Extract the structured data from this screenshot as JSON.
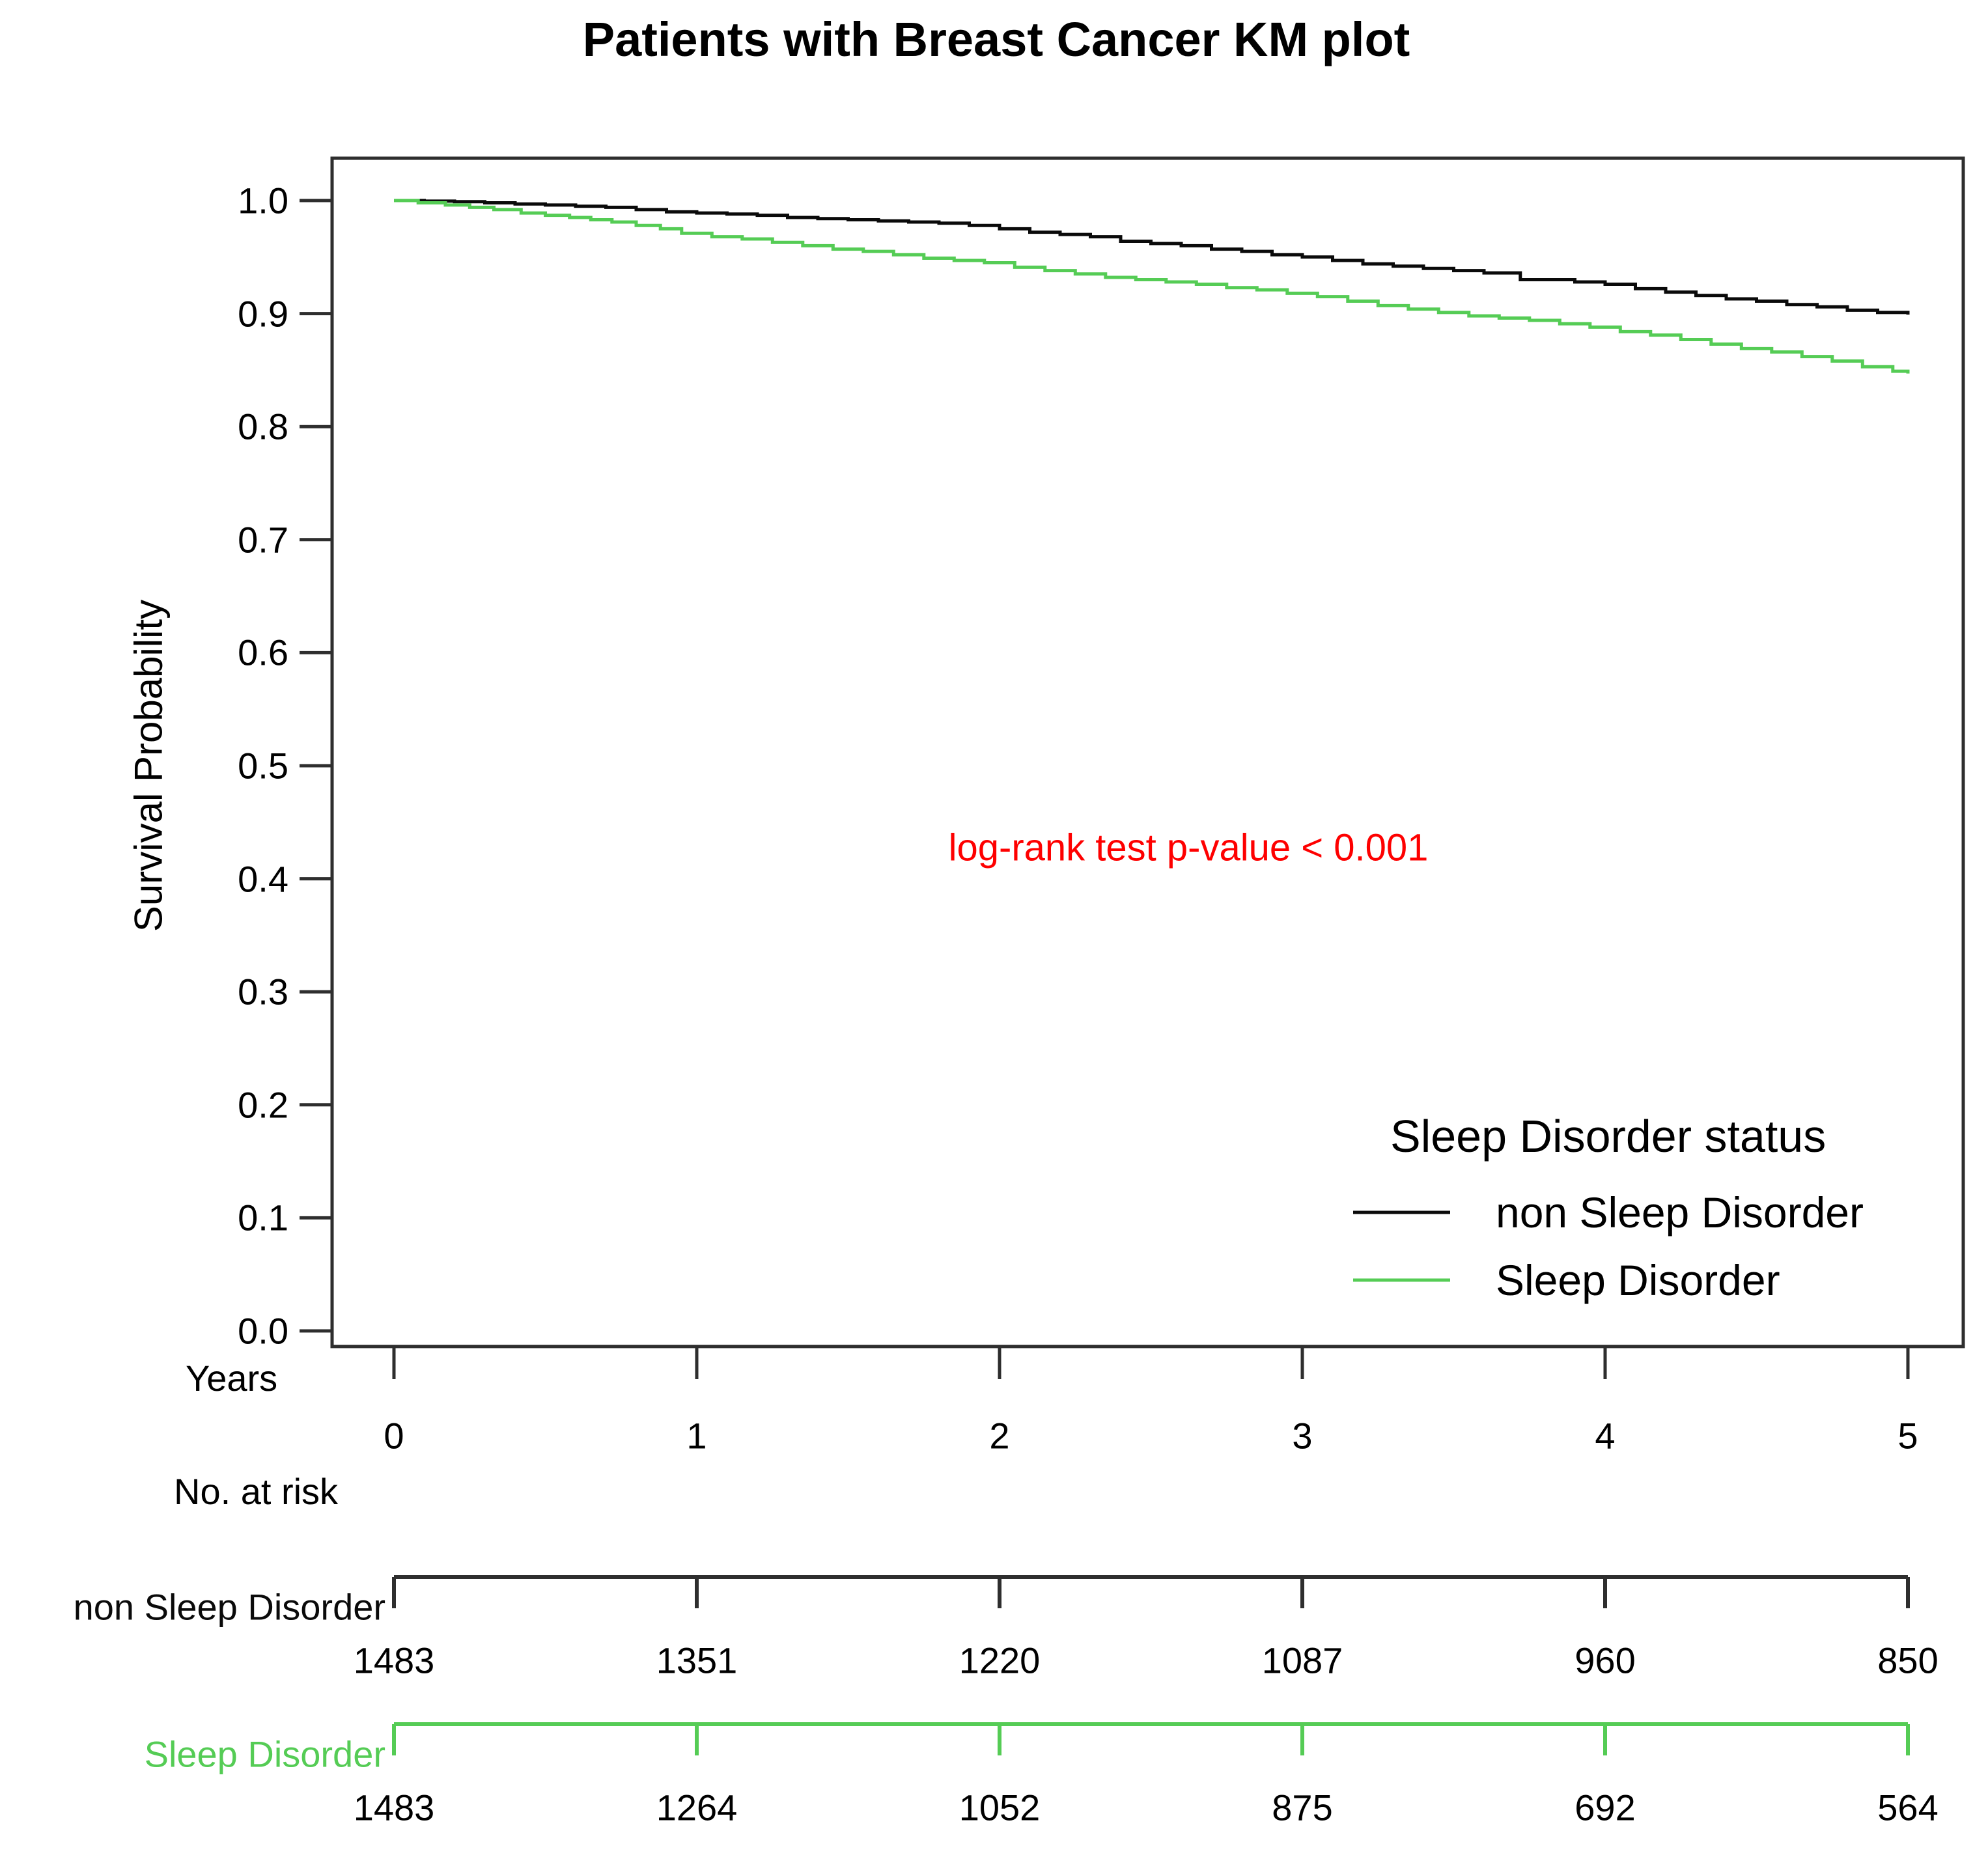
{
  "title": "Patients with Breast Cancer KM plot",
  "annotation": {
    "text": "log-rank test p-value < 0.001",
    "color": "#fe0000"
  },
  "axes": {
    "y_label": "Survival Probability",
    "x_label": "Years"
  },
  "chart_data": {
    "type": "line",
    "subtype": "kaplan-meier-step",
    "title": "Patients with Breast Cancer KM plot",
    "xlabel": "Years",
    "ylabel": "Survival Probability",
    "xlim": [
      0,
      5
    ],
    "ylim": [
      0.0,
      1.0
    ],
    "x_ticks": [
      0,
      1,
      2,
      3,
      4,
      5
    ],
    "y_ticks": [
      1.0,
      0.9,
      0.8,
      0.7,
      0.6,
      0.5,
      0.4,
      0.3,
      0.2,
      0.1,
      0.0
    ],
    "grid": false,
    "annotation": {
      "text": "log-rank test p-value < 0.001",
      "color": "#fe0000",
      "x": 2.62,
      "y": 0.425
    },
    "legend": {
      "title": "Sleep Disorder status",
      "position": "lower right",
      "entries": [
        {
          "label": "non Sleep Disorder",
          "color": "#0a0a0a"
        },
        {
          "label": "Sleep Disorder",
          "color": "#55cc55"
        }
      ]
    },
    "series": [
      {
        "name": "non Sleep Disorder",
        "color": "#0a0a0a",
        "points": [
          [
            0,
            1.0
          ],
          [
            0.1,
            0.9995
          ],
          [
            0.2,
            0.999
          ],
          [
            0.3,
            0.998
          ],
          [
            0.4,
            0.997
          ],
          [
            0.5,
            0.996
          ],
          [
            0.6,
            0.995
          ],
          [
            0.7,
            0.994
          ],
          [
            0.8,
            0.992
          ],
          [
            0.9,
            0.99
          ],
          [
            1.0,
            0.989
          ],
          [
            1.1,
            0.988
          ],
          [
            1.2,
            0.987
          ],
          [
            1.3,
            0.985
          ],
          [
            1.4,
            0.984
          ],
          [
            1.5,
            0.983
          ],
          [
            1.6,
            0.982
          ],
          [
            1.7,
            0.981
          ],
          [
            1.8,
            0.98
          ],
          [
            1.9,
            0.978
          ],
          [
            2.0,
            0.975
          ],
          [
            2.1,
            0.972
          ],
          [
            2.2,
            0.97
          ],
          [
            2.3,
            0.968
          ],
          [
            2.4,
            0.964
          ],
          [
            2.5,
            0.962
          ],
          [
            2.6,
            0.96
          ],
          [
            2.7,
            0.957
          ],
          [
            2.8,
            0.955
          ],
          [
            2.9,
            0.952
          ],
          [
            3.0,
            0.95
          ],
          [
            3.1,
            0.947
          ],
          [
            3.2,
            0.944
          ],
          [
            3.3,
            0.942
          ],
          [
            3.4,
            0.94
          ],
          [
            3.5,
            0.938
          ],
          [
            3.6,
            0.936
          ],
          [
            3.72,
            0.93
          ],
          [
            3.9,
            0.928
          ],
          [
            4.0,
            0.926
          ],
          [
            4.1,
            0.922
          ],
          [
            4.2,
            0.919
          ],
          [
            4.3,
            0.916
          ],
          [
            4.4,
            0.913
          ],
          [
            4.5,
            0.911
          ],
          [
            4.6,
            0.908
          ],
          [
            4.7,
            0.906
          ],
          [
            4.8,
            0.903
          ],
          [
            4.9,
            0.901
          ],
          [
            5.0,
            0.899
          ]
        ]
      },
      {
        "name": "Sleep Disorder",
        "color": "#55cc55",
        "points": [
          [
            0,
            1.0
          ],
          [
            0.08,
            0.998
          ],
          [
            0.17,
            0.996
          ],
          [
            0.25,
            0.994
          ],
          [
            0.33,
            0.992
          ],
          [
            0.42,
            0.989
          ],
          [
            0.5,
            0.987
          ],
          [
            0.58,
            0.985
          ],
          [
            0.65,
            0.983
          ],
          [
            0.72,
            0.981
          ],
          [
            0.8,
            0.978
          ],
          [
            0.88,
            0.975
          ],
          [
            0.95,
            0.971
          ],
          [
            1.05,
            0.968
          ],
          [
            1.15,
            0.966
          ],
          [
            1.25,
            0.963
          ],
          [
            1.35,
            0.96
          ],
          [
            1.45,
            0.957
          ],
          [
            1.55,
            0.955
          ],
          [
            1.65,
            0.952
          ],
          [
            1.75,
            0.949
          ],
          [
            1.85,
            0.947
          ],
          [
            1.95,
            0.945
          ],
          [
            2.05,
            0.941
          ],
          [
            2.15,
            0.938
          ],
          [
            2.25,
            0.935
          ],
          [
            2.35,
            0.932
          ],
          [
            2.45,
            0.93
          ],
          [
            2.55,
            0.928
          ],
          [
            2.65,
            0.926
          ],
          [
            2.75,
            0.923
          ],
          [
            2.85,
            0.921
          ],
          [
            2.95,
            0.918
          ],
          [
            3.05,
            0.915
          ],
          [
            3.15,
            0.911
          ],
          [
            3.25,
            0.907
          ],
          [
            3.35,
            0.904
          ],
          [
            3.45,
            0.901
          ],
          [
            3.55,
            0.898
          ],
          [
            3.65,
            0.896
          ],
          [
            3.75,
            0.894
          ],
          [
            3.85,
            0.891
          ],
          [
            3.95,
            0.888
          ],
          [
            4.05,
            0.884
          ],
          [
            4.15,
            0.881
          ],
          [
            4.25,
            0.877
          ],
          [
            4.35,
            0.873
          ],
          [
            4.45,
            0.869
          ],
          [
            4.55,
            0.866
          ],
          [
            4.65,
            0.862
          ],
          [
            4.75,
            0.858
          ],
          [
            4.85,
            0.853
          ],
          [
            4.95,
            0.849
          ],
          [
            5.0,
            0.847
          ]
        ]
      }
    ],
    "at_risk": {
      "header": "No. at risk",
      "times": [
        0,
        1,
        2,
        3,
        4,
        5
      ],
      "rows": [
        {
          "label": "non Sleep Disorder",
          "color": "#0a0a0a",
          "line_color": "#2e2e2e",
          "values": [
            "1483",
            "1351",
            "1220",
            "1087",
            "960",
            "850"
          ]
        },
        {
          "label": "Sleep Disorder",
          "color": "#55cc55",
          "line_color": "#55cc55",
          "values": [
            "1483",
            "1264",
            "1052",
            "875",
            "692",
            "564"
          ]
        }
      ]
    }
  }
}
